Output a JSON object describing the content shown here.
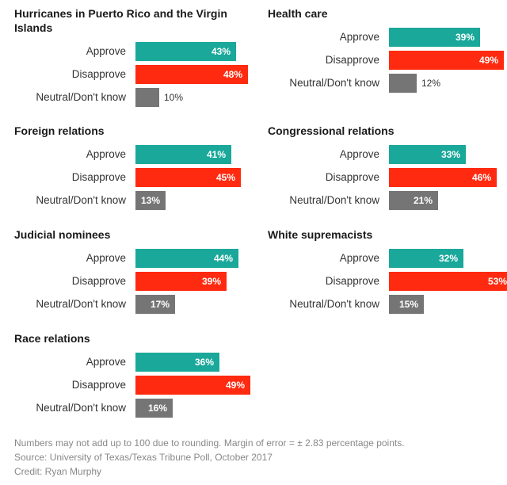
{
  "colors": {
    "approve": "#1aa89a",
    "disapprove": "#ff2a0f",
    "neutral": "#757575"
  },
  "chart_data": [
    {
      "type": "bar",
      "orientation": "horizontal",
      "title": "Hurricanes in Puerto Rico and the Virgin Islands",
      "categories": [
        "Approve",
        "Disapprove",
        "Neutral/Don't know"
      ],
      "values": [
        43,
        48,
        10
      ],
      "value_labels": [
        "43%",
        "48%",
        "10%"
      ]
    },
    {
      "type": "bar",
      "orientation": "horizontal",
      "title": "Health care",
      "categories": [
        "Approve",
        "Disapprove",
        "Neutral/Don't know"
      ],
      "values": [
        39,
        49,
        12
      ],
      "value_labels": [
        "39%",
        "49%",
        "12%"
      ]
    },
    {
      "type": "bar",
      "orientation": "horizontal",
      "title": "Foreign relations",
      "categories": [
        "Approve",
        "Disapprove",
        "Neutral/Don't know"
      ],
      "values": [
        41,
        45,
        13
      ],
      "value_labels": [
        "41%",
        "45%",
        "13%"
      ]
    },
    {
      "type": "bar",
      "orientation": "horizontal",
      "title": "Congressional relations",
      "categories": [
        "Approve",
        "Disapprove",
        "Neutral/Don't know"
      ],
      "values": [
        33,
        46,
        21
      ],
      "value_labels": [
        "33%",
        "46%",
        "21%"
      ]
    },
    {
      "type": "bar",
      "orientation": "horizontal",
      "title": "Judicial nominees",
      "categories": [
        "Approve",
        "Disapprove",
        "Neutral/Don't know"
      ],
      "values": [
        44,
        39,
        17
      ],
      "value_labels": [
        "44%",
        "39%",
        "17%"
      ]
    },
    {
      "type": "bar",
      "orientation": "horizontal",
      "title": "White supremacists",
      "categories": [
        "Approve",
        "Disapprove",
        "Neutral/Don't know"
      ],
      "values": [
        32,
        53,
        15
      ],
      "value_labels": [
        "32%",
        "53%",
        "15%"
      ]
    },
    {
      "type": "bar",
      "orientation": "horizontal",
      "title": "Race relations",
      "categories": [
        "Approve",
        "Disapprove",
        "Neutral/Don't know"
      ],
      "values": [
        36,
        49,
        16
      ],
      "value_labels": [
        "36%",
        "49%",
        "16%"
      ]
    }
  ],
  "footer": {
    "note": "Numbers may not add up to 100 due to rounding. Margin of error = ± 2.83 percentage points.",
    "source": "Source: University of Texas/Texas Tribune Poll, October 2017",
    "credit": "Credit: Ryan Murphy"
  }
}
